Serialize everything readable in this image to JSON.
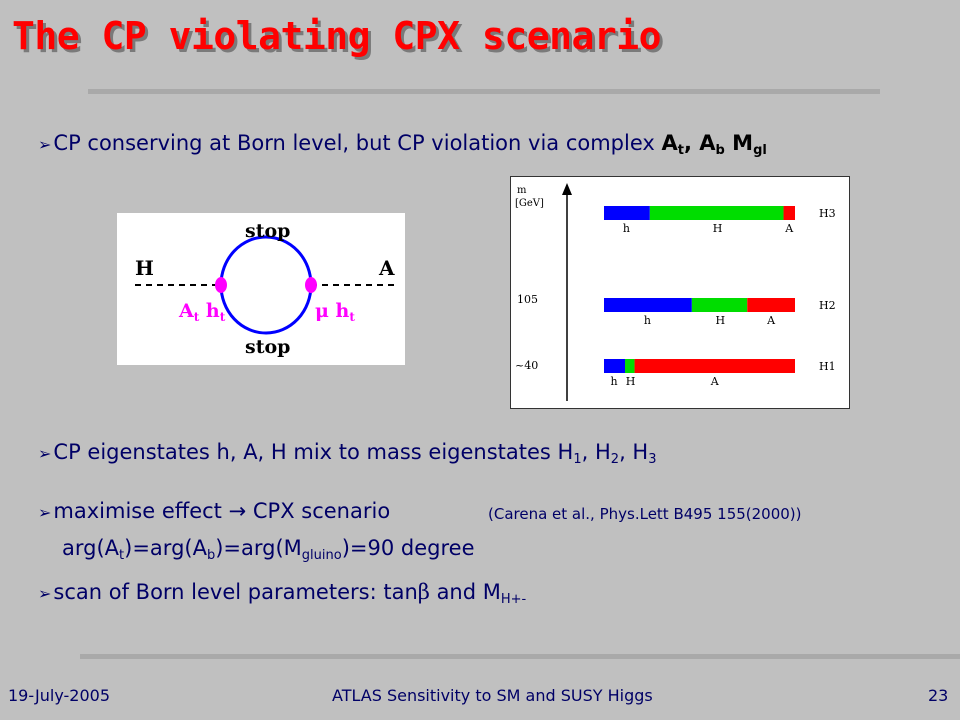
{
  "title": "The CP violating CPX scenario",
  "bullets": {
    "b1_text": "CP conserving at Born level,   but CP violation via complex ",
    "b1_A": "A",
    "b1_sub_t": "t",
    "b1_comma": ", A",
    "b1_sub_b": "b",
    "b1_M": " M",
    "b1_sub_gl": "gl",
    "b2_text": "CP eigenstates h, A, H mix to mass eigenstates H",
    "b2_s1": "1",
    "b2_c1": ", H",
    "b2_s2": "2",
    "b2_c2": ", H",
    "b2_s3": "3",
    "b3_text": "maximise effect ",
    "b3_arrow": "→",
    "b3_text2": " CPX scenario",
    "b3_ref": "(Carena et al., Phys.Lett B495 155(2000))",
    "b3_line2_a": "arg(A",
    "b3_line2_sub_t": "t",
    "b3_line2_b": ")=arg(A",
    "b3_line2_sub_b": "b",
    "b3_line2_c": ")=arg(M",
    "b3_line2_sub_gluino": "gluino",
    "b3_line2_d": ")=90 degree",
    "b4_text": "scan of Born level parameters: tan",
    "b4_beta": "β",
    "b4_text2": " and M",
    "b4_sub": "H+-"
  },
  "feynman": {
    "left_label": "H",
    "right_label": "A",
    "top_label": "stop",
    "bottom_label": "stop",
    "left_vertex": "A",
    "left_vertex_sub": "t",
    "left_vertex_h": " h",
    "left_vertex_h_sub": "t",
    "right_vertex": "μ h",
    "right_vertex_sub": "t",
    "colors": {
      "line": "#0000ff",
      "vertex": "#ff00ff",
      "text": "#000000"
    }
  },
  "chart_data": {
    "type": "bar",
    "ylabel_line1": "m",
    "ylabel_line2": "[GeV]",
    "y_ticks": [
      "105",
      "~40"
    ],
    "states": [
      {
        "name": "H3",
        "fractions": {
          "h": 0.24,
          "H": 0.7,
          "A": 0.06
        },
        "labels": [
          "h",
          "H",
          "A"
        ]
      },
      {
        "name": "H2",
        "fractions": {
          "h": 0.46,
          "H": 0.29,
          "A": 0.25
        },
        "labels": [
          "h",
          "H",
          "A"
        ]
      },
      {
        "name": "H1",
        "fractions": {
          "h": 0.11,
          "H": 0.05,
          "A": 0.84
        },
        "labels": [
          "h",
          "H",
          "A"
        ]
      }
    ],
    "colors": {
      "h": "#0000ff",
      "H": "#00dd00",
      "A": "#ff0000"
    }
  },
  "footer": {
    "date": "19-July-2005",
    "center": "ATLAS Sensitivity to SM and SUSY Higgs",
    "page": "23"
  }
}
